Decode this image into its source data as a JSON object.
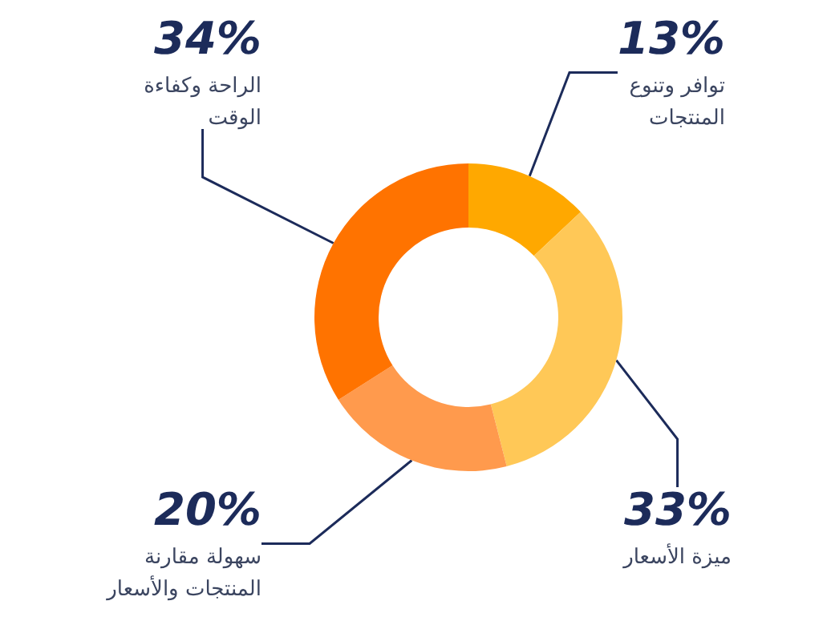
{
  "chart_data": {
    "type": "donut",
    "categories": [
      "توافر وتنوع المنتجات",
      "ميزة الأسعار",
      "سهولة مقارنة المنتجات والأسعار",
      "الراحة وكفاءة الوقت"
    ],
    "values": [
      13,
      33,
      20,
      34
    ],
    "value_labels": [
      "13%",
      "33%",
      "20%",
      "34%"
    ],
    "colors": [
      "#ffa800",
      "#ffc857",
      "#ff9a4d",
      "#ff7300"
    ]
  }
}
